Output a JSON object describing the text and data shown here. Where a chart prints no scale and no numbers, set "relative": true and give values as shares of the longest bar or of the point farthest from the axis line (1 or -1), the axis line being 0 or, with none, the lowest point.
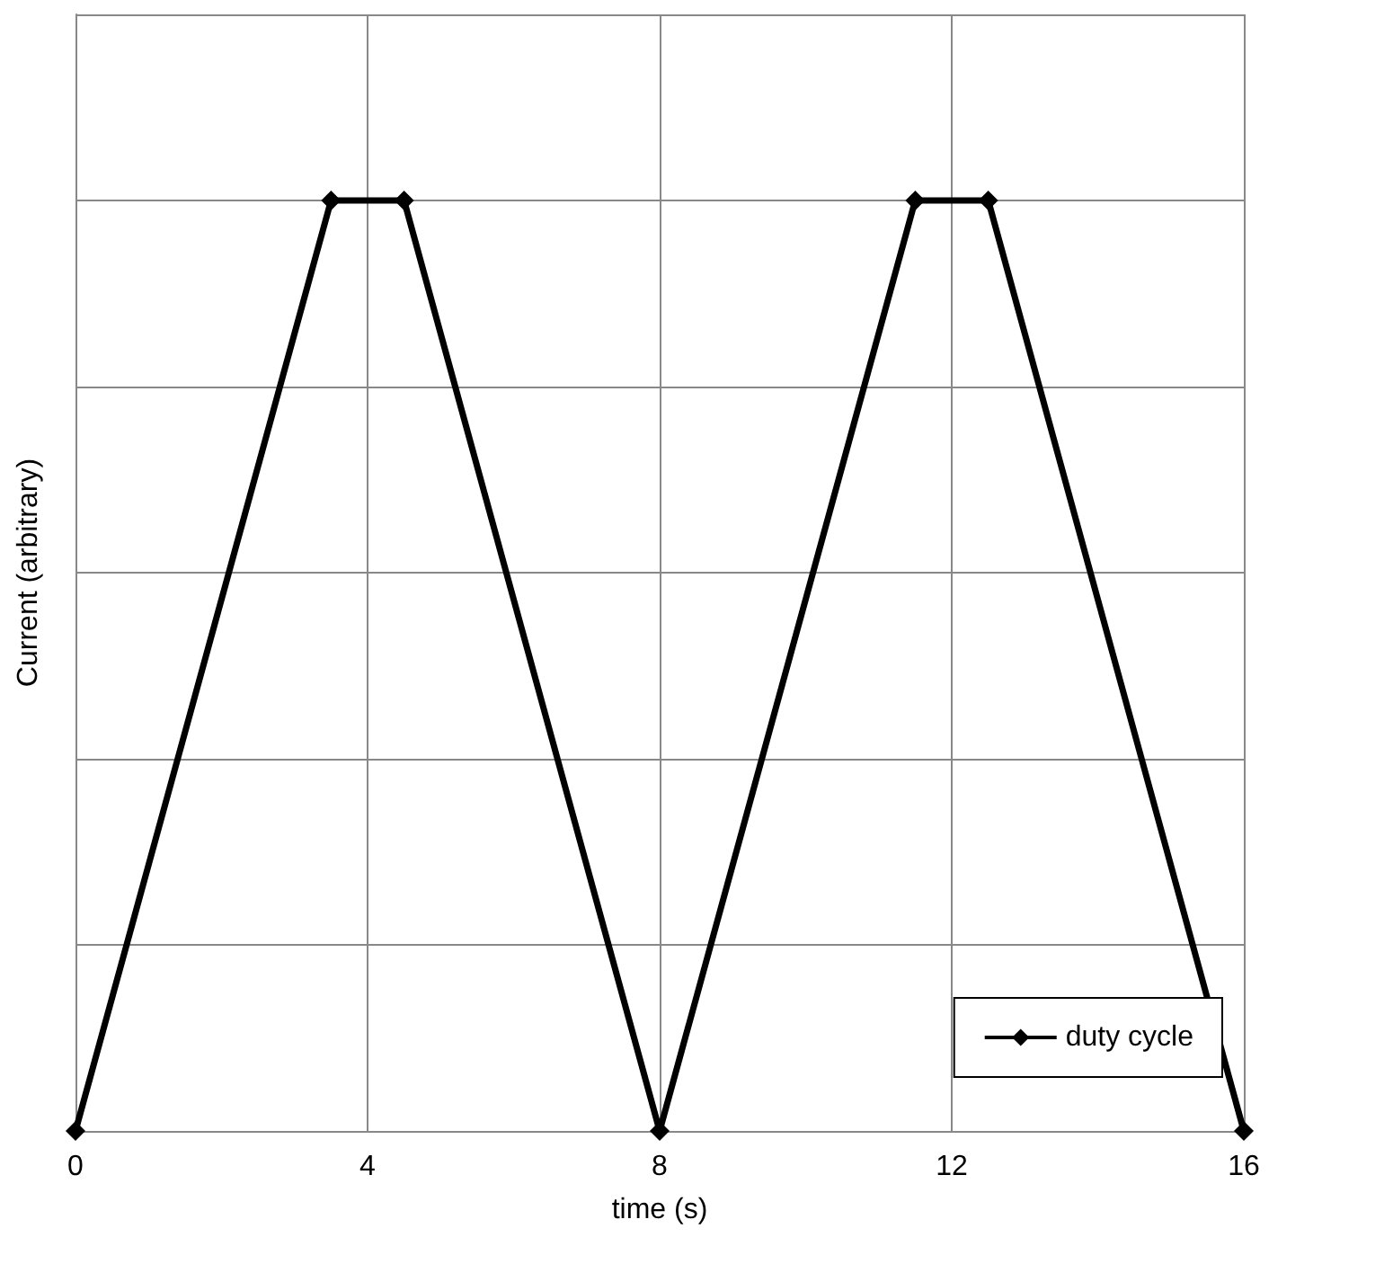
{
  "chart_data": {
    "type": "line",
    "xlabel": "time (s)",
    "ylabel": "Current (arbitrary)",
    "relative": true,
    "xlim": [
      0,
      16
    ],
    "xticks": [
      0,
      4,
      8,
      12,
      16
    ],
    "series": [
      {
        "name": "duty cycle",
        "color": "#000000",
        "x": [
          0,
          3.5,
          4.5,
          8,
          11.5,
          12.5,
          16
        ],
        "values": [
          0,
          1,
          1,
          0,
          1,
          1,
          0
        ]
      }
    ],
    "grid": true,
    "legend": "bottom right",
    "marker": "diamond",
    "line_style": "solid"
  }
}
